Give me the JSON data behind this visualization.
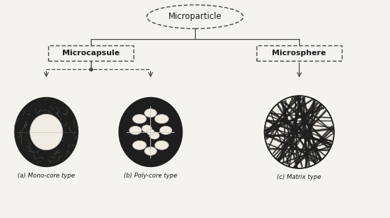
{
  "bg_color": "#f5f3ef",
  "title": "Microparticle",
  "node_microcapsule": "Microcapsule",
  "node_microsphere": "Microsphere",
  "label_a": "(a) Mono-core type",
  "label_b": "(b) Poly-core type",
  "label_c": "(c) Matrix type",
  "text_color": "#1a1a1a",
  "line_color": "#444444",
  "dark_fill": "#1e1e1e",
  "light_fill": "#f0ece4",
  "figw": 5.58,
  "figh": 3.12,
  "dpi": 100
}
